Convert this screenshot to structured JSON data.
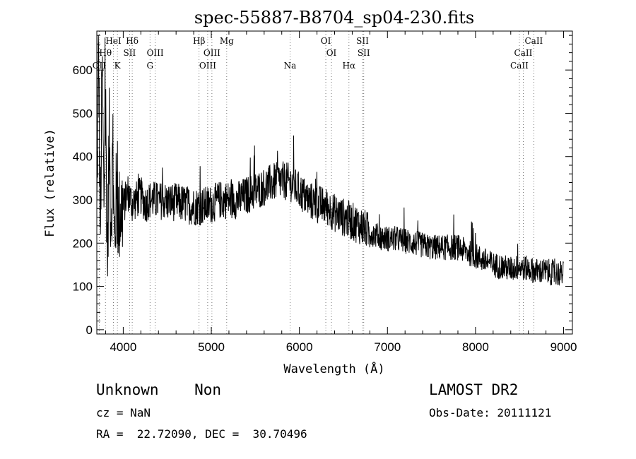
{
  "chart_data": {
    "type": "line",
    "title": "spec-55887-B8704_sp04-230.fits",
    "xlabel": "Wavelength (Å)",
    "ylabel": "Flux (relative)",
    "xlim": [
      3700,
      9100
    ],
    "ylim": [
      -10,
      690
    ],
    "xticks": [
      4000,
      5000,
      6000,
      7000,
      8000,
      9000
    ],
    "yticks": [
      0,
      100,
      200,
      300,
      400,
      500,
      600
    ],
    "grid": false,
    "series": [
      {
        "x": [
          3700,
          3720,
          3740,
          3760,
          3780,
          3800,
          3820,
          3840,
          3860,
          3880,
          3900,
          3920,
          3950,
          3980,
          4000,
          4050,
          4100,
          4150,
          4200,
          4250,
          4300,
          4350,
          4400,
          4450,
          4500,
          4600,
          4700,
          4800,
          4900,
          5000,
          5100,
          5200,
          5300,
          5400,
          5500,
          5600,
          5700,
          5800,
          5900,
          6000,
          6100,
          6200,
          6300,
          6400,
          6500,
          6600,
          6700,
          6800,
          6900,
          7000,
          7100,
          7200,
          7300,
          7400,
          7500,
          7600,
          7700,
          7800,
          7900,
          8000,
          8100,
          8200,
          8300,
          8400,
          8500,
          8600,
          8700,
          8800,
          8900,
          9000
        ],
        "y": [
          250,
          650,
          200,
          600,
          300,
          520,
          150,
          450,
          250,
          380,
          200,
          300,
          260,
          280,
          280,
          320,
          290,
          300,
          310,
          290,
          300,
          300,
          295,
          300,
          295,
          295,
          290,
          285,
          285,
          290,
          300,
          300,
          300,
          310,
          320,
          330,
          340,
          345,
          340,
          320,
          300,
          290,
          285,
          270,
          260,
          250,
          240,
          225,
          215,
          210,
          210,
          205,
          200,
          195,
          190,
          190,
          190,
          190,
          180,
          170,
          160,
          150,
          145,
          140,
          145,
          140,
          135,
          135,
          130,
          130
        ]
      }
    ],
    "spectral_lines": [
      {
        "label": "OII",
        "wl": 3727,
        "row": 3
      },
      {
        "label": "Hθ",
        "wl": 3798,
        "row": 2
      },
      {
        "label": "HeI",
        "wl": 3889,
        "row": 1
      },
      {
        "label": "K",
        "wl": 3934,
        "row": 3
      },
      {
        "label": "SII",
        "wl": 4072,
        "row": 2
      },
      {
        "label": "Hδ",
        "wl": 4102,
        "row": 1
      },
      {
        "label": "G",
        "wl": 4304,
        "row": 3
      },
      {
        "label": "OIII",
        "wl": 4363,
        "row": 2
      },
      {
        "label": "Hβ",
        "wl": 4861,
        "row": 1
      },
      {
        "label": "OIII",
        "wl": 4959,
        "row": 3
      },
      {
        "label": "OIII",
        "wl": 5007,
        "row": 2
      },
      {
        "label": "Mg",
        "wl": 5175,
        "row": 1
      },
      {
        "label": "Na",
        "wl": 5894,
        "row": 3
      },
      {
        "label": "OI",
        "wl": 6300,
        "row": 1
      },
      {
        "label": "OI",
        "wl": 6364,
        "row": 2
      },
      {
        "label": "Hα",
        "wl": 6563,
        "row": 3
      },
      {
        "label": "SII",
        "wl": 6717,
        "row": 1
      },
      {
        "label": "SII",
        "wl": 6731,
        "row": 2
      },
      {
        "label": "CaII",
        "wl": 8498,
        "row": 3
      },
      {
        "label": "CaII",
        "wl": 8542,
        "row": 2
      },
      {
        "label": "CaII",
        "wl": 8662,
        "row": 1
      }
    ]
  },
  "info": {
    "class_text": "Unknown    Non",
    "survey": "LAMOST DR2",
    "cz": "cz = NaN",
    "obs_date": "Obs-Date: 20111121",
    "coords": "RA =  22.72090, DEC =  30.70496"
  }
}
